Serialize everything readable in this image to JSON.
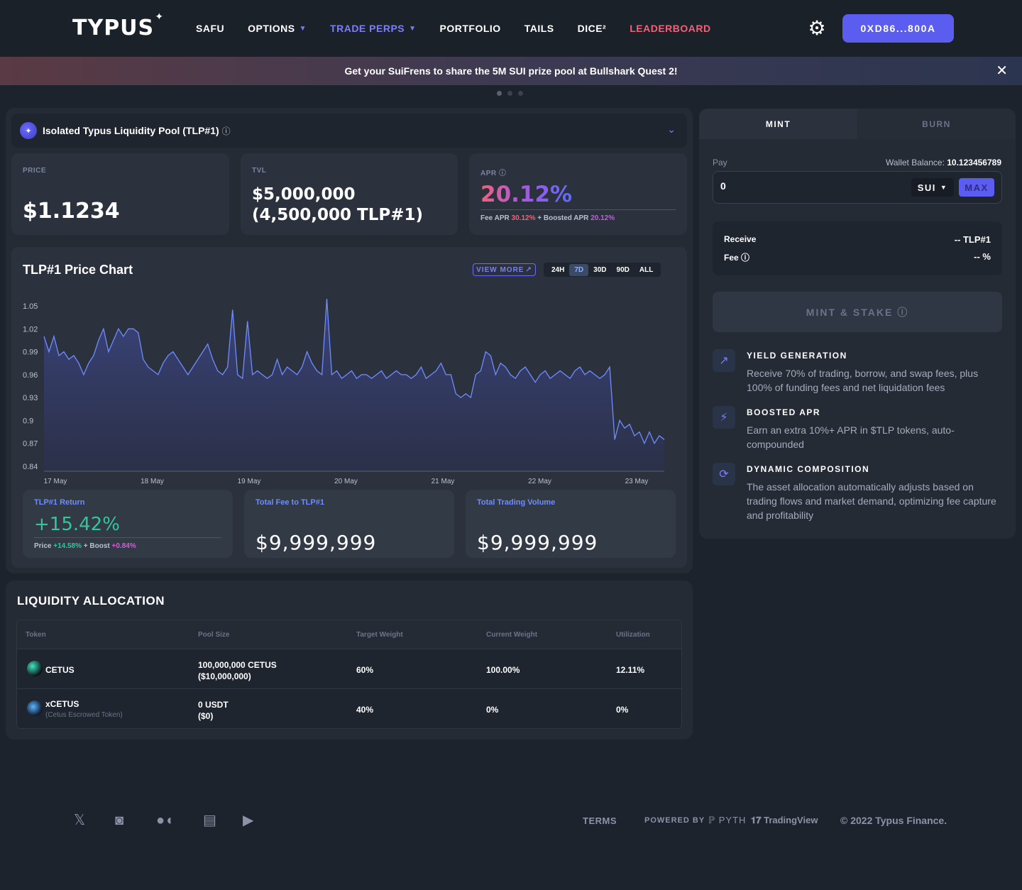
{
  "nav": {
    "logo": "TYPUS",
    "items": [
      {
        "label": "SAFU",
        "has_chevron": false
      },
      {
        "label": "OPTIONS",
        "has_chevron": true
      },
      {
        "label": "TRADE PERPS",
        "has_chevron": true
      },
      {
        "label": "PORTFOLIO",
        "has_chevron": false
      },
      {
        "label": "TAILS",
        "has_chevron": false
      },
      {
        "label": "DICE²",
        "has_chevron": false
      },
      {
        "label": "LEADERBOARD",
        "has_chevron": false
      }
    ],
    "wallet": "0XD86...800A",
    "accent": "#5b5cf0"
  },
  "banner": {
    "text": "Get your SuiFrens to share the 5M SUI prize pool at Bullshark Quest 2!"
  },
  "pool": {
    "name": "Isolated Typus Liquidity Pool (TLP#1)"
  },
  "stats": {
    "price_label": "PRICE",
    "price": "$1.1234",
    "tvl_label": "TVL",
    "tvl_line1": "$5,000,000",
    "tvl_line2": "(4,500,000 TLP#1)",
    "apr_label": "APR",
    "apr": "20.12%",
    "fee_apr_label": "Fee APR",
    "fee_apr": "30.12%",
    "boosted_apr_label": "Boosted APR",
    "boosted_apr": "20.12%"
  },
  "chart": {
    "title": "TLP#1 Price Chart",
    "view_more": "VIEW MORE",
    "ranges": [
      "24H",
      "7D",
      "30D",
      "90D",
      "ALL"
    ],
    "selected_range": "7D"
  },
  "chart_data": {
    "type": "area",
    "x_ticks": [
      "17 May",
      "18 May",
      "19 May",
      "20 May",
      "21 May",
      "22 May",
      "23 May"
    ],
    "y_ticks": [
      "1.05",
      "1.02",
      "0.99",
      "0.96",
      "0.93",
      "0.9",
      "0.87",
      "0.84"
    ],
    "ylim": [
      0.84,
      1.05
    ],
    "values": [
      1.01,
      0.99,
      1.01,
      0.985,
      0.99,
      0.98,
      0.985,
      0.975,
      0.96,
      0.975,
      0.985,
      1.005,
      1.02,
      0.99,
      1.005,
      1.02,
      1.01,
      1.02,
      1.02,
      1.015,
      0.98,
      0.97,
      0.965,
      0.96,
      0.975,
      0.985,
      0.99,
      0.98,
      0.97,
      0.96,
      0.97,
      0.98,
      0.99,
      1.0,
      0.98,
      0.965,
      0.96,
      0.97,
      1.045,
      0.96,
      0.955,
      1.03,
      0.96,
      0.965,
      0.96,
      0.955,
      0.96,
      0.98,
      0.96,
      0.97,
      0.965,
      0.96,
      0.97,
      0.99,
      0.975,
      0.965,
      0.96,
      1.06,
      0.96,
      0.965,
      0.955,
      0.96,
      0.965,
      0.955,
      0.96,
      0.96,
      0.955,
      0.96,
      0.965,
      0.955,
      0.96,
      0.965,
      0.96,
      0.96,
      0.955,
      0.96,
      0.97,
      0.955,
      0.96,
      0.965,
      0.975,
      0.96,
      0.96,
      0.935,
      0.93,
      0.935,
      0.93,
      0.96,
      0.965,
      0.99,
      0.985,
      0.96,
      0.975,
      0.97,
      0.96,
      0.955,
      0.965,
      0.97,
      0.96,
      0.95,
      0.96,
      0.965,
      0.955,
      0.96,
      0.965,
      0.96,
      0.955,
      0.965,
      0.97,
      0.96,
      0.965,
      0.96,
      0.955,
      0.96,
      0.97,
      0.875,
      0.9,
      0.89,
      0.895,
      0.88,
      0.885,
      0.87,
      0.885,
      0.87,
      0.88,
      0.875
    ],
    "color": "#6f8cff"
  },
  "tiles": {
    "return_label": "TLP#1 Return",
    "return_value": "+15.42%",
    "return_price_label": "Price",
    "return_price": "+14.58%",
    "return_boost_label": "Boost",
    "return_boost": "+0.84%",
    "fee_label": "Total Fee to TLP#1",
    "fee_value": "$9,999,999",
    "volume_label": "Total Trading Volume",
    "volume_value": "$9,999,999"
  },
  "liquidity": {
    "title": "LIQUIDITY ALLOCATION",
    "headers": [
      "Token",
      "Pool Size",
      "Target Weight",
      "Current Weight",
      "Utilization"
    ],
    "rows": [
      {
        "token": "CETUS",
        "sub": "",
        "size1": "100,000,000 CETUS",
        "size2": "($10,000,000)",
        "target": "60%",
        "current": "100.00%",
        "util": "12.11%"
      },
      {
        "token": "xCETUS",
        "sub": "(Cetus Escrowed Token)",
        "size1": "0 USDT",
        "size2": "($0)",
        "target": "40%",
        "current": "0%",
        "util": "0%"
      }
    ]
  },
  "trade": {
    "tabs": [
      "MINT",
      "BURN"
    ],
    "pay_label": "Pay",
    "wallet_balance_label": "Wallet Balance:",
    "wallet_balance": "10.123456789",
    "pay_value": "0",
    "token": "SUI",
    "max": "MAX",
    "receive_label": "Receive",
    "receive_value": "-- TLP#1",
    "fee_label": "Fee",
    "fee_value": "-- %",
    "mint_stake": "MINT & STAKE"
  },
  "features": [
    {
      "title": "YIELD GENERATION",
      "desc": "Receive 70% of trading, borrow, and swap fees, plus 100% of funding fees and net liquidation fees",
      "icon": "chart-up-icon"
    },
    {
      "title": "BOOSTED APR",
      "desc": "Earn an extra 10%+ APR in $TLP tokens, auto-compounded",
      "icon": "lightning-icon"
    },
    {
      "title": "DYNAMIC COMPOSITION",
      "desc": "The asset allocation automatically adjusts based on trading flows and market demand, optimizing fee capture and profitability",
      "icon": "rotate-icon"
    }
  ],
  "footer": {
    "terms": "TERMS",
    "powered_by": "POWERED BY",
    "pyth": "PYTH",
    "tradingview": "TradingView",
    "copyright": "© 2022 Typus Finance."
  }
}
